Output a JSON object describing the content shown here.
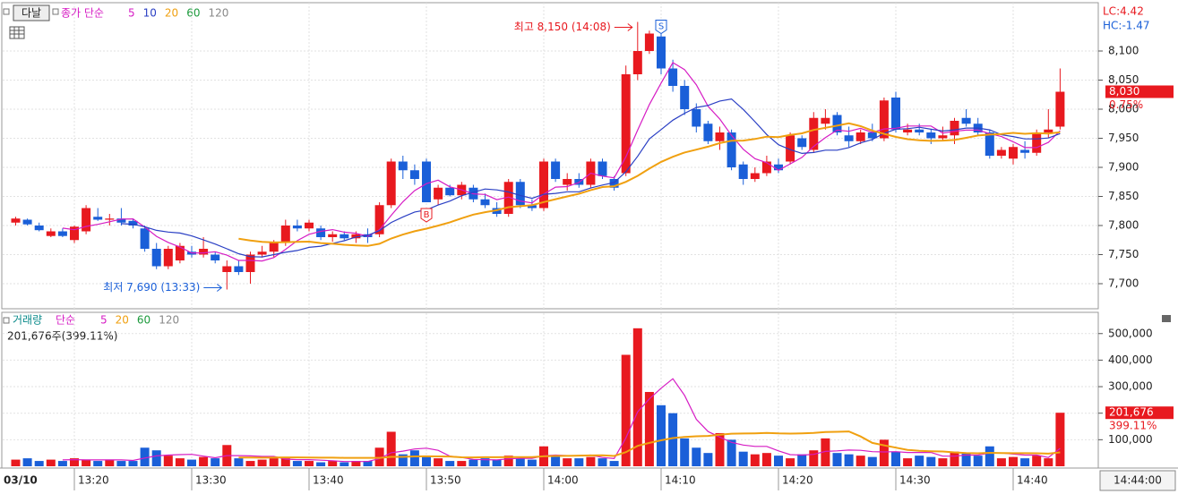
{
  "chart_data": [
    {
      "type": "candlestick",
      "title": "다날",
      "ma_label": "종가 단순",
      "ma_periods": [
        {
          "label": "5",
          "color": "#d61cc4"
        },
        {
          "label": "10",
          "color": "#2a3fc4"
        },
        {
          "label": "20",
          "color": "#f0a010"
        },
        {
          "label": "60",
          "color": "#1c9a3c"
        },
        {
          "label": "120",
          "color": "#888888"
        }
      ],
      "up_color": "#e8191f",
      "down_color": "#1a5fd8",
      "lc_label": "LC:4.42",
      "hc_label": "HC:-1.47",
      "last_price": 8030,
      "last_price_label": "8,030",
      "last_change_label": "0.75%",
      "high_annotation": "최고 8,150 (14:08)",
      "low_annotation": "최저 7,690 (13:33)",
      "buy_signal": "B",
      "sell_signal": "S",
      "ylim": [
        7660,
        8180
      ],
      "yticks": [
        {
          "value": 7700,
          "label": "7,700"
        },
        {
          "value": 7750,
          "label": "7,750"
        },
        {
          "value": 7800,
          "label": "7,800"
        },
        {
          "value": 7850,
          "label": "7,850"
        },
        {
          "value": 7900,
          "label": "7,900"
        },
        {
          "value": 7950,
          "label": "7,950"
        },
        {
          "value": 8000,
          "label": "8,000"
        },
        {
          "value": 8050,
          "label": "8,050"
        },
        {
          "value": 8100,
          "label": "8,100"
        }
      ],
      "ohlc": [
        [
          7805,
          7815,
          7800,
          7812
        ],
        [
          7810,
          7812,
          7800,
          7802
        ],
        [
          7800,
          7805,
          7790,
          7792
        ],
        [
          7782,
          7795,
          7780,
          7790
        ],
        [
          7790,
          7795,
          7780,
          7782
        ],
        [
          7775,
          7800,
          7770,
          7798
        ],
        [
          7790,
          7835,
          7785,
          7830
        ],
        [
          7815,
          7830,
          7808,
          7810
        ],
        [
          7810,
          7820,
          7800,
          7812
        ],
        [
          7812,
          7830,
          7800,
          7805
        ],
        [
          7808,
          7812,
          7795,
          7800
        ],
        [
          7795,
          7800,
          7755,
          7760
        ],
        [
          7760,
          7770,
          7725,
          7730
        ],
        [
          7730,
          7765,
          7725,
          7760
        ],
        [
          7740,
          7770,
          7735,
          7765
        ],
        [
          7755,
          7765,
          7745,
          7750
        ],
        [
          7750,
          7780,
          7745,
          7760
        ],
        [
          7750,
          7755,
          7735,
          7740
        ],
        [
          7720,
          7740,
          7690,
          7730
        ],
        [
          7730,
          7740,
          7715,
          7720
        ],
        [
          7720,
          7755,
          7700,
          7750
        ],
        [
          7750,
          7765,
          7745,
          7755
        ],
        [
          7755,
          7775,
          7745,
          7770
        ],
        [
          7770,
          7810,
          7765,
          7800
        ],
        [
          7800,
          7810,
          7790,
          7795
        ],
        [
          7795,
          7810,
          7790,
          7805
        ],
        [
          7795,
          7800,
          7775,
          7780
        ],
        [
          7780,
          7790,
          7772,
          7785
        ],
        [
          7785,
          7790,
          7775,
          7778
        ],
        [
          7778,
          7790,
          7770,
          7785
        ],
        [
          7785,
          7795,
          7770,
          7780
        ],
        [
          7785,
          7840,
          7780,
          7835
        ],
        [
          7835,
          7915,
          7830,
          7910
        ],
        [
          7910,
          7920,
          7880,
          7895
        ],
        [
          7895,
          7905,
          7870,
          7880
        ],
        [
          7910,
          7915,
          7840,
          7840
        ],
        [
          7845,
          7870,
          7835,
          7865
        ],
        [
          7865,
          7870,
          7850,
          7852
        ],
        [
          7852,
          7875,
          7845,
          7870
        ],
        [
          7865,
          7870,
          7840,
          7845
        ],
        [
          7845,
          7855,
          7830,
          7835
        ],
        [
          7830,
          7840,
          7815,
          7820
        ],
        [
          7820,
          7880,
          7815,
          7875
        ],
        [
          7875,
          7880,
          7830,
          7835
        ],
        [
          7835,
          7845,
          7825,
          7830
        ],
        [
          7830,
          7915,
          7825,
          7910
        ],
        [
          7910,
          7915,
          7875,
          7880
        ],
        [
          7870,
          7890,
          7860,
          7880
        ],
        [
          7880,
          7890,
          7865,
          7870
        ],
        [
          7870,
          7915,
          7865,
          7910
        ],
        [
          7910,
          7915,
          7880,
          7885
        ],
        [
          7880,
          7885,
          7860,
          7865
        ],
        [
          7890,
          8075,
          7885,
          8060
        ],
        [
          8060,
          8150,
          8050,
          8100
        ],
        [
          8100,
          8135,
          8095,
          8130
        ],
        [
          8125,
          8130,
          8060,
          8070
        ],
        [
          8070,
          8085,
          8030,
          8040
        ],
        [
          8040,
          8050,
          7990,
          8000
        ],
        [
          8000,
          8010,
          7960,
          7970
        ],
        [
          7975,
          7980,
          7940,
          7945
        ],
        [
          7945,
          7970,
          7930,
          7960
        ],
        [
          7960,
          7965,
          7895,
          7900
        ],
        [
          7905,
          7910,
          7870,
          7880
        ],
        [
          7880,
          7900,
          7875,
          7890
        ],
        [
          7890,
          7920,
          7885,
          7910
        ],
        [
          7905,
          7915,
          7890,
          7895
        ],
        [
          7910,
          7960,
          7905,
          7955
        ],
        [
          7950,
          7955,
          7930,
          7935
        ],
        [
          7930,
          7995,
          7925,
          7985
        ],
        [
          7975,
          8000,
          7965,
          7985
        ],
        [
          7990,
          7995,
          7955,
          7960
        ],
        [
          7955,
          7970,
          7935,
          7945
        ],
        [
          7945,
          7965,
          7940,
          7960
        ],
        [
          7960,
          7975,
          7945,
          7950
        ],
        [
          7950,
          8020,
          7945,
          8015
        ],
        [
          8020,
          8030,
          7960,
          7965
        ],
        [
          7960,
          7975,
          7955,
          7965
        ],
        [
          7965,
          7975,
          7955,
          7960
        ],
        [
          7960,
          7965,
          7940,
          7950
        ],
        [
          7950,
          7970,
          7945,
          7955
        ],
        [
          7955,
          7985,
          7940,
          7980
        ],
        [
          7985,
          8000,
          7970,
          7975
        ],
        [
          7975,
          7985,
          7955,
          7960
        ],
        [
          7960,
          7965,
          7915,
          7920
        ],
        [
          7920,
          7935,
          7915,
          7930
        ],
        [
          7915,
          7940,
          7905,
          7935
        ],
        [
          7930,
          7945,
          7915,
          7925
        ],
        [
          7925,
          7965,
          7920,
          7960
        ],
        [
          7960,
          8000,
          7950,
          7965
        ],
        [
          7970,
          8070,
          7965,
          8030
        ]
      ]
    },
    {
      "type": "bar",
      "title": "거래량",
      "ma_label": "단순",
      "ma_periods": [
        {
          "label": "5",
          "color": "#d61cc4"
        },
        {
          "label": "20",
          "color": "#f0a010"
        },
        {
          "label": "60",
          "color": "#1c9a3c"
        },
        {
          "label": "120",
          "color": "#888888"
        }
      ],
      "volume_summary": "201,676주(399.11%)",
      "last_volume": 201676,
      "last_volume_label": "201,676",
      "last_ratio_label": "399.11%",
      "date_label": "03/10",
      "time_label": "14:44:00",
      "ylim": [
        0,
        570000
      ],
      "yticks": [
        {
          "value": 100000,
          "label": "100,000"
        },
        {
          "value": 200000,
          "label": "200,000"
        },
        {
          "value": 300000,
          "label": "300,000"
        },
        {
          "value": 400000,
          "label": "400,000"
        },
        {
          "value": 500000,
          "label": "500,000"
        }
      ],
      "categories": [
        null,
        null,
        null,
        null,
        null,
        "13:20",
        null,
        null,
        null,
        null,
        null,
        null,
        null,
        null,
        null,
        "13:30",
        null,
        null,
        null,
        null,
        null,
        null,
        null,
        null,
        null,
        "13:40",
        null,
        null,
        null,
        null,
        null,
        null,
        null,
        null,
        null,
        "13:50",
        null,
        null,
        null,
        null,
        null,
        null,
        null,
        null,
        null,
        "14:00",
        null,
        null,
        null,
        null,
        null,
        null,
        null,
        null,
        null,
        "14:10",
        null,
        null,
        null,
        null,
        null,
        null,
        null,
        null,
        null,
        "14:20",
        null,
        null,
        null,
        null,
        null,
        null,
        null,
        null,
        null,
        "14:30",
        null,
        null,
        null,
        null,
        null,
        null,
        null,
        null,
        null,
        "14:40",
        null,
        null,
        null,
        null
      ],
      "values": [
        25000,
        30000,
        20000,
        25000,
        20000,
        30000,
        25000,
        20000,
        25000,
        20000,
        20000,
        70000,
        60000,
        40000,
        30000,
        25000,
        35000,
        30000,
        80000,
        30000,
        20000,
        25000,
        30000,
        30000,
        20000,
        20000,
        15000,
        20000,
        15000,
        20000,
        20000,
        70000,
        130000,
        45000,
        60000,
        35000,
        30000,
        20000,
        20000,
        25000,
        30000,
        25000,
        40000,
        30000,
        25000,
        75000,
        40000,
        30000,
        30000,
        35000,
        30000,
        20000,
        420000,
        520000,
        280000,
        230000,
        200000,
        105000,
        70000,
        50000,
        125000,
        100000,
        55000,
        45000,
        50000,
        40000,
        30000,
        45000,
        60000,
        105000,
        50000,
        45000,
        40000,
        35000,
        100000,
        55000,
        30000,
        40000,
        35000,
        30000,
        55000,
        50000,
        40000,
        75000,
        30000,
        35000,
        30000,
        40000,
        30000,
        201676
      ]
    }
  ]
}
